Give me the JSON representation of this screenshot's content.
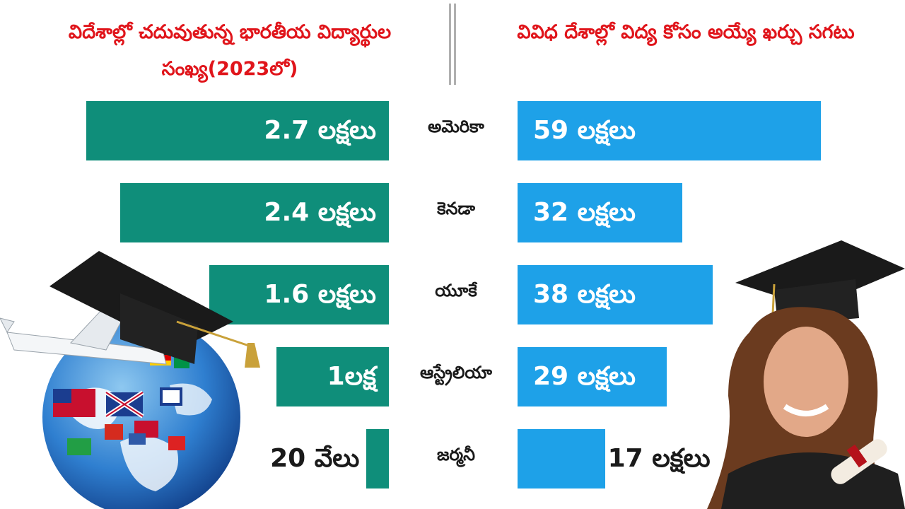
{
  "titles": {
    "left": "విదేశాల్లో చదువుతున్న భారతీయ విద్యార్థుల సంఖ్య(2023లో)",
    "right": "వివిధ దేశాల్లో విద్య కోసం అయ్యే ఖర్చు సగటు"
  },
  "chart_data": {
    "type": "bar",
    "categories": [
      "అమెరికా",
      "కెనడా",
      "యూకే",
      "ఆస్ట్రేలియా",
      "జర్మనీ"
    ],
    "series": [
      {
        "values": [
          2.7,
          2.4,
          1.6,
          1.0,
          0.2
        ],
        "labels": [
          "2.7 లక్షలు",
          "2.4 లక్షలు",
          "1.6 లక్షలు",
          "1లక్ష",
          "20 వేలు"
        ]
      },
      {
        "values": [
          59,
          32,
          38,
          29,
          17
        ],
        "labels": [
          "59 లక్షలు",
          "32 లక్షలు",
          "38 లక్షలు",
          "29 లక్షలు",
          "17 లక్షలు"
        ]
      }
    ],
    "colors": {
      "left": "#0f8e7a",
      "right": "#1ea1e8",
      "title": "#e0151b"
    }
  }
}
